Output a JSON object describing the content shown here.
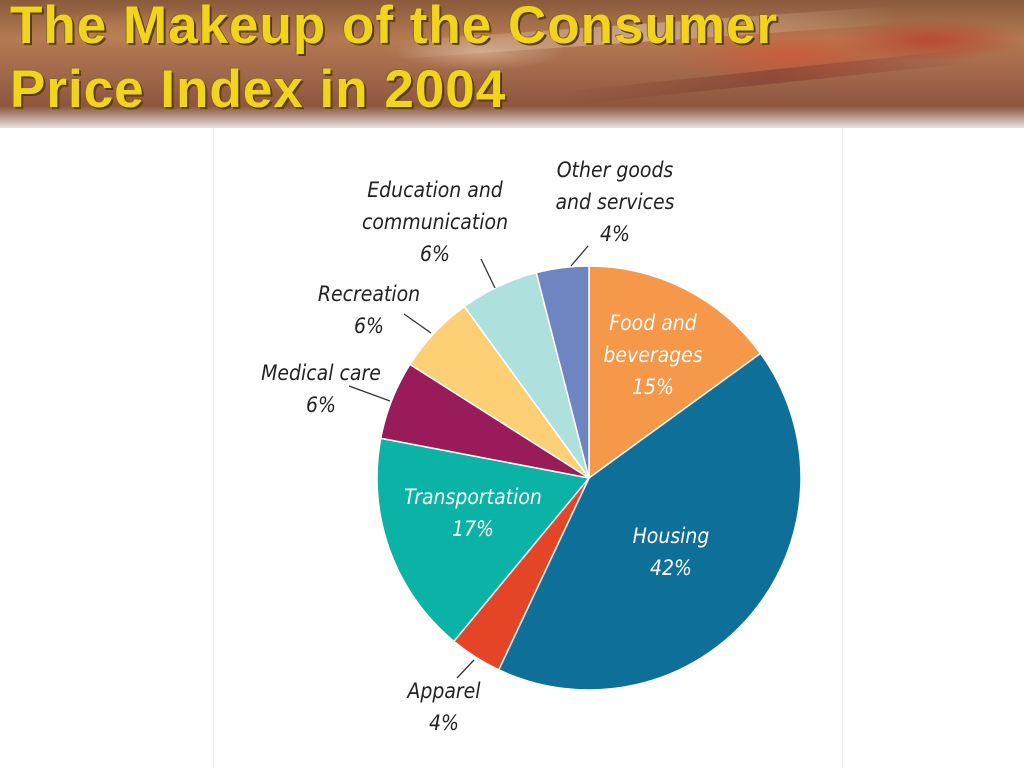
{
  "title_line1": "The Makeup of the Consumer",
  "title_line2": "Price Index in 2004",
  "chart_data": {
    "type": "pie",
    "title": "The Makeup of the Consumer Price Index in 2004",
    "slices": [
      {
        "name": "Food and beverages",
        "label_lines": [
          "Food and",
          "beverages"
        ],
        "value": 15,
        "value_label": "15%",
        "color": "#f5984a",
        "label_inside": true,
        "text_color": "#ffffff"
      },
      {
        "name": "Housing",
        "label_lines": [
          "Housing"
        ],
        "value": 42,
        "value_label": "42%",
        "color": "#0e6f99",
        "label_inside": true,
        "text_color": "#ffffff"
      },
      {
        "name": "Apparel",
        "label_lines": [
          "Apparel"
        ],
        "value": 4,
        "value_label": "4%",
        "color": "#e54527",
        "label_inside": false,
        "text_color": "#222222"
      },
      {
        "name": "Transportation",
        "label_lines": [
          "Transportation"
        ],
        "value": 17,
        "value_label": "17%",
        "color": "#0bb3a6",
        "label_inside": true,
        "text_color": "#ffffff"
      },
      {
        "name": "Medical care",
        "label_lines": [
          "Medical care"
        ],
        "value": 6,
        "value_label": "6%",
        "color": "#9a1b59",
        "label_inside": false,
        "text_color": "#222222"
      },
      {
        "name": "Recreation",
        "label_lines": [
          "Recreation"
        ],
        "value": 6,
        "value_label": "6%",
        "color": "#fdd076",
        "label_inside": false,
        "text_color": "#222222"
      },
      {
        "name": "Education and communication",
        "label_lines": [
          "Education and",
          "communication"
        ],
        "value": 6,
        "value_label": "6%",
        "color": "#aee0de",
        "label_inside": false,
        "text_color": "#222222"
      },
      {
        "name": "Other goods and services",
        "label_lines": [
          "Other goods",
          "and services"
        ],
        "value": 4,
        "value_label": "4%",
        "color": "#6f85c2",
        "label_inside": false,
        "text_color": "#222222"
      }
    ]
  }
}
